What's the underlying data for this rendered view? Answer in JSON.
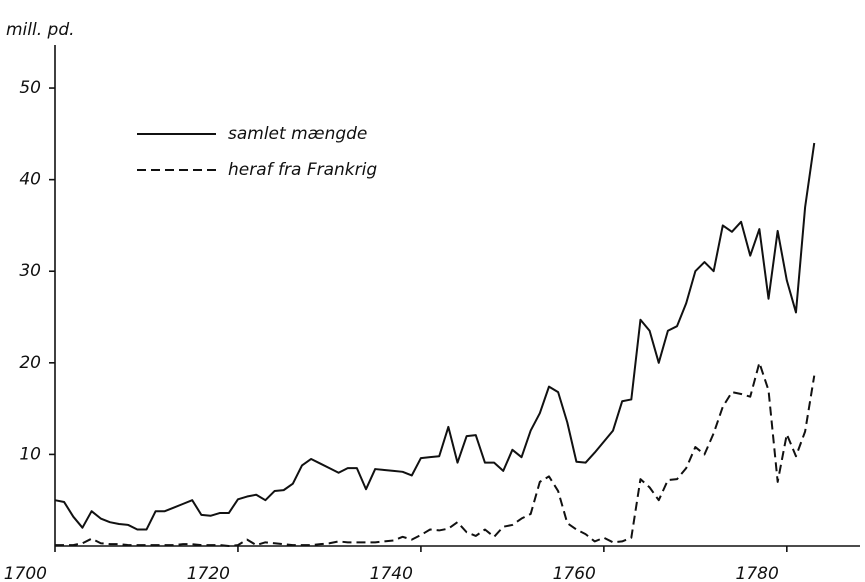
{
  "chart_data": {
    "type": "line",
    "y_axis_label": "mill. pd.",
    "x": [
      1700,
      1701,
      1702,
      1703,
      1704,
      1705,
      1706,
      1707,
      1708,
      1709,
      1710,
      1711,
      1712,
      1713,
      1714,
      1715,
      1716,
      1717,
      1718,
      1719,
      1720,
      1721,
      1722,
      1723,
      1724,
      1725,
      1726,
      1727,
      1728,
      1729,
      1730,
      1731,
      1732,
      1733,
      1734,
      1735,
      1736,
      1737,
      1738,
      1739,
      1740,
      1741,
      1742,
      1743,
      1744,
      1745,
      1746,
      1747,
      1748,
      1749,
      1750,
      1751,
      1752,
      1753,
      1754,
      1755,
      1756,
      1757,
      1758,
      1759,
      1760,
      1761,
      1762,
      1763,
      1764,
      1765,
      1766,
      1767,
      1768,
      1769,
      1770,
      1771,
      1772,
      1773,
      1774,
      1775,
      1776,
      1777,
      1778,
      1779,
      1780,
      1781,
      1782,
      1783
    ],
    "series": [
      {
        "name": "samlet mængde",
        "color": "#111111",
        "dash": "solid",
        "values": [
          5.0,
          4.8,
          3.2,
          2.0,
          3.8,
          3.0,
          2.6,
          2.4,
          2.3,
          1.8,
          1.8,
          3.8,
          3.8,
          4.2,
          4.6,
          5.0,
          3.4,
          3.3,
          3.6,
          3.6,
          5.1,
          5.4,
          5.6,
          5.0,
          6.0,
          6.1,
          6.8,
          8.8,
          9.5,
          9.0,
          8.5,
          8.0,
          8.5,
          8.5,
          6.2,
          8.4,
          8.3,
          8.2,
          8.1,
          7.7,
          9.6,
          9.7,
          9.8,
          13.0,
          9.1,
          12.0,
          12.1,
          9.1,
          9.1,
          8.2,
          10.5,
          9.7,
          12.6,
          14.5,
          17.4,
          16.8,
          13.5,
          9.2,
          9.1,
          10.2,
          11.4,
          12.6,
          15.8,
          16.0,
          24.7,
          23.5,
          20.0,
          23.5,
          24.0,
          26.5,
          30.0,
          31.0,
          30.0,
          35.0,
          34.3,
          35.4,
          31.7,
          34.6,
          27.0,
          34.4,
          29.0,
          25.5,
          37.0,
          44.0
        ]
      },
      {
        "name": "heraf fra Frankrig",
        "color": "#111111",
        "dash": "dashed",
        "values": [
          0.1,
          0.1,
          0.1,
          0.3,
          0.8,
          0.3,
          0.2,
          0.2,
          0.1,
          0.1,
          0.1,
          0.1,
          0.1,
          0.1,
          0.2,
          0.2,
          0.1,
          0.1,
          0.1,
          0.0,
          0.1,
          0.7,
          0.1,
          0.4,
          0.3,
          0.2,
          0.1,
          0.1,
          0.1,
          0.2,
          0.3,
          0.5,
          0.4,
          0.4,
          0.4,
          0.4,
          0.5,
          0.6,
          1.0,
          0.7,
          1.2,
          1.8,
          1.7,
          1.9,
          2.6,
          1.5,
          1.1,
          1.8,
          1.0,
          2.1,
          2.3,
          3.0,
          3.5,
          7.0,
          7.6,
          6.0,
          2.5,
          1.8,
          1.3,
          0.5,
          0.9,
          0.4,
          0.5,
          0.9,
          7.3,
          6.4,
          5.0,
          7.2,
          7.3,
          8.5,
          10.8,
          10.0,
          12.3,
          15.2,
          16.8,
          16.6,
          16.3,
          20.0,
          17.0,
          7.0,
          12.2,
          9.8,
          12.5,
          18.6
        ]
      }
    ],
    "xlim": [
      1700,
      1788
    ],
    "ylim": [
      0,
      54.7
    ],
    "xticks": [
      1700,
      1720,
      1740,
      1760,
      1780
    ],
    "yticks": [
      10,
      20,
      30,
      40,
      50
    ],
    "grid": false,
    "legend": "upper left"
  }
}
